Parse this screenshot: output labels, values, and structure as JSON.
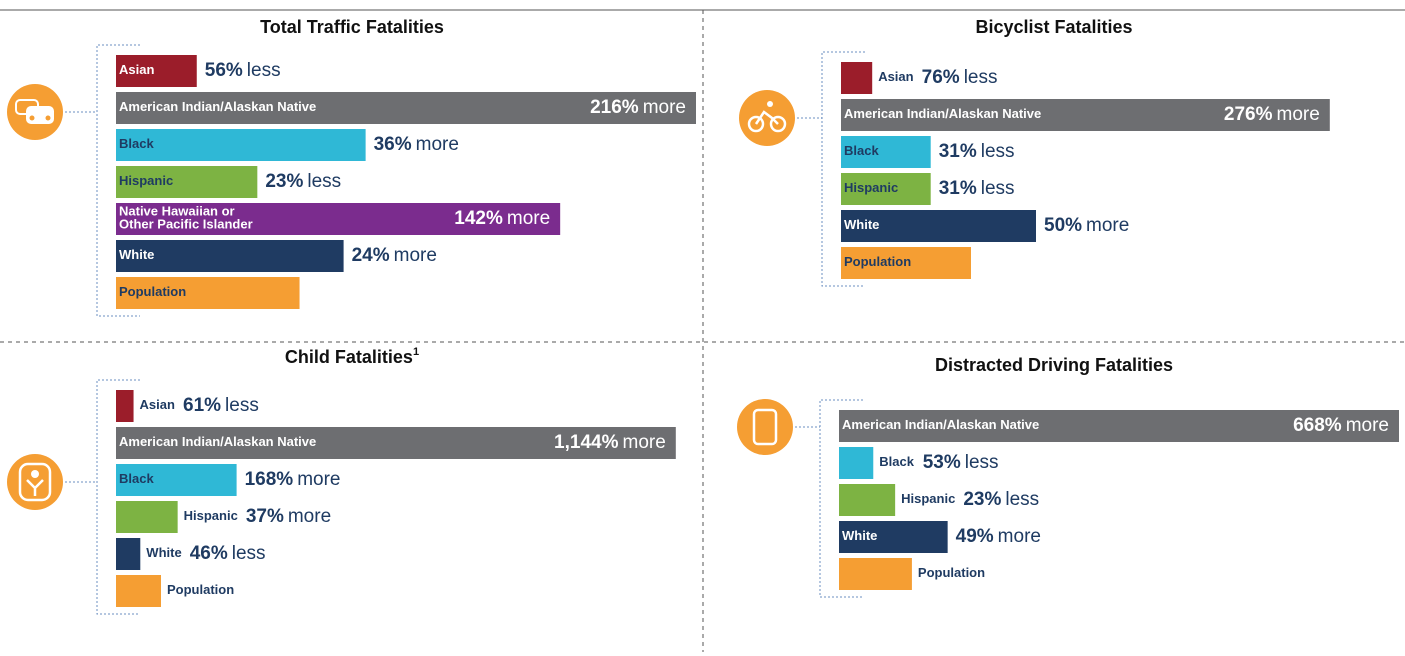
{
  "chart_data": [
    {
      "type": "bar",
      "title": "Total Traffic Fatalities",
      "categories": [
        "Asian",
        "American Indian/Alaskan Native",
        "Black",
        "Hispanic",
        "Native Hawaiian or\nOther Pacific Islander",
        "White"
      ],
      "values": [
        56,
        216,
        36,
        23,
        142,
        24
      ],
      "value_labels": [
        "56%",
        "216%",
        "36%",
        "23%",
        "142%",
        "24%"
      ],
      "directions": [
        "less",
        "more",
        "more",
        "less",
        "more",
        "more"
      ],
      "colors": [
        "#9b1d2a",
        "#6d6e71",
        "#2fb8d6",
        "#7db343",
        "#7b2c8e",
        "#1f3b62"
      ],
      "baseline_label": "Population",
      "baseline_color": "#f59e33"
    },
    {
      "type": "bar",
      "title": "Bicyclist Fatalities",
      "categories": [
        "Asian",
        "American Indian/Alaskan Native",
        "Black",
        "Hispanic",
        "White"
      ],
      "values": [
        76,
        276,
        31,
        31,
        50
      ],
      "value_labels": [
        "76%",
        "276%",
        "31%",
        "31%",
        "50%"
      ],
      "directions": [
        "less",
        "more",
        "less",
        "less",
        "more"
      ],
      "colors": [
        "#9b1d2a",
        "#6d6e71",
        "#2fb8d6",
        "#7db343",
        "#1f3b62"
      ],
      "baseline_label": "Population",
      "baseline_color": "#f59e33"
    },
    {
      "type": "bar",
      "title": "Child Fatalities",
      "title_note": "1",
      "categories": [
        "Asian",
        "American Indian/Alaskan Native",
        "Black",
        "Hispanic",
        "White"
      ],
      "values": [
        61,
        1144,
        168,
        37,
        46
      ],
      "value_labels": [
        "61%",
        "1,144%",
        "168%",
        "37%",
        "46%"
      ],
      "directions": [
        "less",
        "more",
        "more",
        "more",
        "less"
      ],
      "colors": [
        "#9b1d2a",
        "#6d6e71",
        "#2fb8d6",
        "#7db343",
        "#1f3b62"
      ],
      "baseline_label": "Population",
      "baseline_color": "#f59e33"
    },
    {
      "type": "bar",
      "title": "Distracted Driving Fatalities",
      "categories": [
        "American Indian/Alaskan Native",
        "Black",
        "Hispanic",
        "White"
      ],
      "values": [
        668,
        53,
        23,
        49
      ],
      "value_labels": [
        "668%",
        "53%",
        "23%",
        "49%"
      ],
      "directions": [
        "more",
        "less",
        "less",
        "more"
      ],
      "colors": [
        "#6d6e71",
        "#2fb8d6",
        "#7db343",
        "#1f3b62"
      ],
      "baseline_label": "Population",
      "baseline_color": "#f59e33"
    }
  ]
}
